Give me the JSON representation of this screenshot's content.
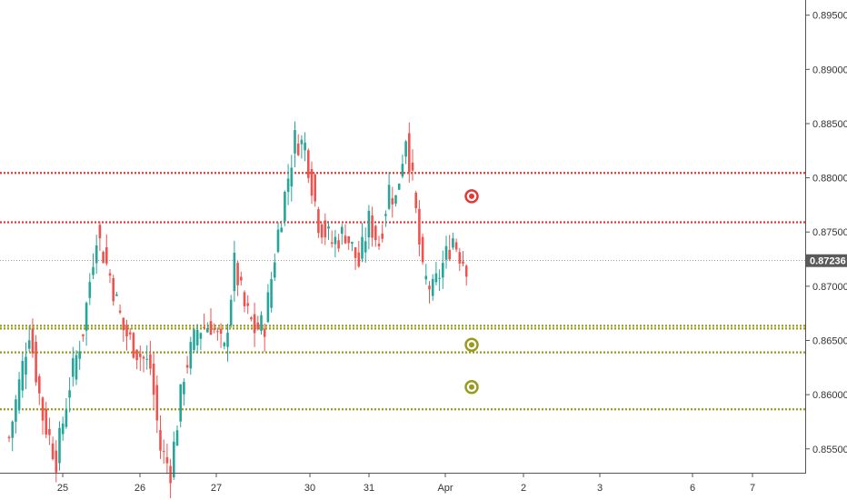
{
  "chart_data": {
    "type": "candlestick",
    "title": "",
    "xlabel": "",
    "ylabel": "",
    "ylim": [
      0.8528,
      0.8964
    ],
    "grid": false,
    "x_tick_labels": [
      "25",
      "26",
      "27",
      "30",
      "31",
      "Apr",
      "2",
      "3",
      "6",
      "7"
    ],
    "y_tick_labels": [
      "0.85500",
      "0.86000",
      "0.86500",
      "0.87000",
      "0.87500",
      "0.88000",
      "0.88500",
      "0.89000",
      "0.89500"
    ],
    "y_tick_values": [
      0.855,
      0.86,
      0.865,
      0.87,
      0.875,
      0.88,
      0.885,
      0.89,
      0.895
    ],
    "last_price": {
      "value": 0.87236,
      "label": "0.87236"
    },
    "horizontal_lines": [
      {
        "value": 0.88045,
        "color": "#e53935",
        "style": "dotted"
      },
      {
        "value": 0.8759,
        "color": "#e53935",
        "style": "dotted"
      },
      {
        "value": 0.86635,
        "color": "#9a9a1e",
        "style": "dotted"
      },
      {
        "value": 0.8661,
        "color": "#9a9a1e",
        "style": "dotted"
      },
      {
        "value": 0.8639,
        "color": "#9a9a1e",
        "style": "dotted"
      },
      {
        "value": 0.85865,
        "color": "#9a9a1e",
        "style": "dotted"
      }
    ],
    "markers": [
      {
        "value": 0.8783,
        "color": "#e53935",
        "icon": "target-icon"
      },
      {
        "value": 0.8646,
        "color": "#9a9a1e",
        "icon": "target-icon"
      },
      {
        "value": 0.8607,
        "color": "#9a9a1e",
        "icon": "target-icon"
      }
    ],
    "colors": {
      "up": "#26a69a",
      "down": "#ef5350",
      "last_price_line": "#555555",
      "badge": "#5a5a5a",
      "axis": "#555555"
    },
    "candle_keypoints": [
      [
        0,
        0.856
      ],
      [
        6,
        0.866
      ],
      [
        10,
        0.858
      ],
      [
        14,
        0.854
      ],
      [
        18,
        0.861
      ],
      [
        22,
        0.866
      ],
      [
        26,
        0.875
      ],
      [
        30,
        0.871
      ],
      [
        34,
        0.866
      ],
      [
        38,
        0.864
      ],
      [
        42,
        0.8625
      ],
      [
        45,
        0.855
      ],
      [
        48,
        0.853
      ],
      [
        52,
        0.862
      ],
      [
        56,
        0.866
      ],
      [
        60,
        0.8665
      ],
      [
        64,
        0.864
      ],
      [
        67,
        0.872
      ],
      [
        70,
        0.868
      ],
      [
        73,
        0.866
      ],
      [
        76,
        0.8665
      ],
      [
        80,
        0.875
      ],
      [
        85,
        0.8835
      ],
      [
        88,
        0.883
      ],
      [
        92,
        0.876
      ],
      [
        96,
        0.874
      ],
      [
        100,
        0.875
      ],
      [
        104,
        0.872
      ],
      [
        107,
        0.876
      ],
      [
        110,
        0.874
      ],
      [
        113,
        0.879
      ],
      [
        115,
        0.878
      ],
      [
        118,
        0.884
      ],
      [
        120,
        0.8795
      ],
      [
        123,
        0.871
      ],
      [
        126,
        0.8695
      ],
      [
        129,
        0.872
      ],
      [
        132,
        0.8745
      ],
      [
        134,
        0.873
      ],
      [
        136,
        0.872
      ]
    ]
  }
}
